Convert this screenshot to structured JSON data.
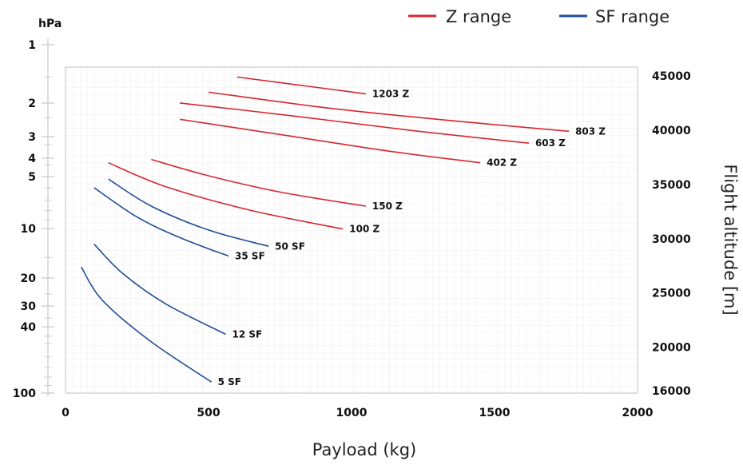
{
  "chart_data": {
    "type": "line",
    "xlabel": "Payload (kg)",
    "y2label": "Flight altitude [m]",
    "y1unit": "hPa",
    "xlim": [
      0,
      2000
    ],
    "ylim_altitude": [
      16000,
      45000
    ],
    "grid": true,
    "legend_position": "top-right",
    "x_ticks": [
      "0",
      "500",
      "1000",
      "1500",
      "2000"
    ],
    "y_right_ticks": [
      {
        "value": 45000,
        "label": "45000"
      },
      {
        "value": 40000,
        "label": "40000"
      },
      {
        "value": 35000,
        "label": "35000"
      },
      {
        "value": 30000,
        "label": "30000"
      },
      {
        "value": 25000,
        "label": "25000"
      },
      {
        "value": 20000,
        "label": "20000"
      },
      {
        "value": 16000,
        "label": "16000"
      }
    ],
    "y_left_ticks": [
      {
        "value": 1,
        "label": "1"
      },
      {
        "value": 2,
        "label": "2"
      },
      {
        "value": 3,
        "label": "3"
      },
      {
        "value": 4,
        "label": "4"
      },
      {
        "value": 5,
        "label": "5"
      },
      {
        "value": 10,
        "label": "10"
      },
      {
        "value": 20,
        "label": "20"
      },
      {
        "value": 30,
        "label": "30"
      },
      {
        "value": 40,
        "label": "40"
      },
      {
        "value": 100,
        "label": "100"
      }
    ],
    "legend": [
      {
        "name": "Z range",
        "color": "#d7262e"
      },
      {
        "name": "SF range",
        "color": "#1f4e96"
      }
    ],
    "series": [
      {
        "name": "1203 Z",
        "group": "Z range",
        "points": [
          [
            600,
            44900
          ],
          [
            1050,
            43350
          ]
        ]
      },
      {
        "name": "803 Z",
        "group": "Z range",
        "points": [
          [
            500,
            43500
          ],
          [
            900,
            42100
          ],
          [
            1300,
            41000
          ],
          [
            1760,
            39900
          ]
        ]
      },
      {
        "name": "603 Z",
        "group": "Z range",
        "points": [
          [
            400,
            42500
          ],
          [
            800,
            41300
          ],
          [
            1200,
            40000
          ],
          [
            1620,
            38800
          ]
        ]
      },
      {
        "name": "402 Z",
        "group": "Z range",
        "points": [
          [
            400,
            41000
          ],
          [
            800,
            39400
          ],
          [
            1150,
            38000
          ],
          [
            1450,
            37000
          ]
        ]
      },
      {
        "name": "150 Z",
        "group": "Z range",
        "points": [
          [
            300,
            37300
          ],
          [
            500,
            35800
          ],
          [
            750,
            34300
          ],
          [
            1050,
            33000
          ]
        ]
      },
      {
        "name": "100 Z",
        "group": "Z range",
        "points": [
          [
            150,
            37000
          ],
          [
            350,
            34800
          ],
          [
            650,
            32600
          ],
          [
            970,
            30900
          ]
        ]
      },
      {
        "name": "50 SF",
        "group": "SF range",
        "points": [
          [
            150,
            35500
          ],
          [
            300,
            33000
          ],
          [
            500,
            30800
          ],
          [
            710,
            29300
          ]
        ]
      },
      {
        "name": "35 SF",
        "group": "SF range",
        "points": [
          [
            100,
            34700
          ],
          [
            250,
            32000
          ],
          [
            400,
            30100
          ],
          [
            570,
            28400
          ]
        ]
      },
      {
        "name": "12 SF",
        "group": "SF range",
        "points": [
          [
            100,
            29500
          ],
          [
            200,
            26800
          ],
          [
            350,
            24000
          ],
          [
            560,
            21200
          ]
        ]
      },
      {
        "name": "5 SF",
        "group": "SF range",
        "points": [
          [
            55,
            27400
          ],
          [
            130,
            24300
          ],
          [
            300,
            20500
          ],
          [
            510,
            16800
          ]
        ]
      }
    ]
  }
}
